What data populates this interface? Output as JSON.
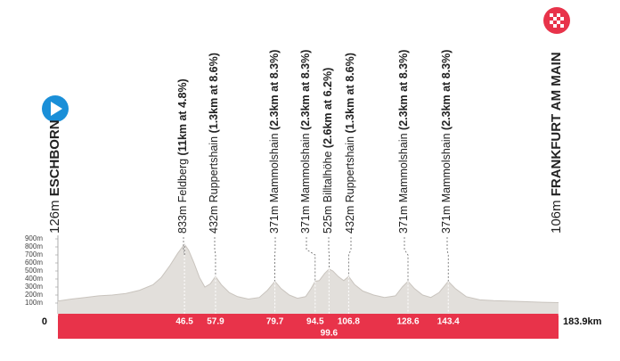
{
  "chart_data": {
    "type": "area",
    "start": {
      "elevation": "126m",
      "name": "ESCHBORN"
    },
    "finish": {
      "elevation": "106m",
      "name": "FRANKFURT AM MAIN"
    },
    "climbs": [
      {
        "km": 46.5,
        "label": "833m Feldberg",
        "detail": "(11km at 4.8%)"
      },
      {
        "km": 57.9,
        "label": "432m Ruppertshain",
        "detail": "(1.3km at 8.6%)"
      },
      {
        "km": 79.7,
        "label": "371m Mammolshain",
        "detail": "(2.3km at 8.3%)"
      },
      {
        "km": 94.5,
        "label": "371m Mammolshain",
        "detail": "(2.3km at 8.3%)"
      },
      {
        "km": 99.6,
        "label": "525m Billtalhöhe",
        "detail": "(2.6km at 6.2%)"
      },
      {
        "km": 106.8,
        "label": "432m Ruppertshain",
        "detail": "(1.3km at 8.6%)"
      },
      {
        "km": 128.6,
        "label": "371m Mammolshain",
        "detail": "(2.3km at 8.3%)"
      },
      {
        "km": 143.4,
        "label": "371m Mammolshain",
        "detail": "(2.3km at 8.3%)"
      }
    ],
    "x": [
      0,
      5,
      10,
      15,
      20,
      25,
      30,
      35,
      38,
      41,
      44,
      46.5,
      48,
      50,
      52,
      54,
      56,
      57.9,
      60,
      63,
      66,
      70,
      74,
      77,
      79.7,
      82,
      85,
      88,
      91,
      93,
      94.5,
      96,
      98,
      99.6,
      101,
      103,
      105,
      106.8,
      109,
      112,
      116,
      120,
      124,
      126.5,
      128.6,
      131,
      134,
      137,
      140,
      143.4,
      146,
      150,
      155,
      160,
      170,
      178,
      183.9
    ],
    "values": [
      126,
      150,
      170,
      190,
      200,
      220,
      260,
      330,
      420,
      560,
      720,
      833,
      760,
      600,
      420,
      300,
      340,
      432,
      330,
      230,
      180,
      150,
      170,
      260,
      371,
      280,
      200,
      160,
      180,
      280,
      371,
      380,
      470,
      525,
      500,
      430,
      380,
      432,
      330,
      250,
      200,
      170,
      190,
      300,
      371,
      280,
      200,
      170,
      230,
      371,
      280,
      180,
      140,
      130,
      120,
      110,
      106
    ],
    "color": "#e2dfdb",
    "bar_color": "#e8334a",
    "xlim": [
      0,
      183.9
    ],
    "xticks": [
      0,
      {
        "value": 183.9,
        "label": "183.9km"
      }
    ],
    "ylim": [
      0,
      900
    ],
    "yticks": [
      {
        "value": 100,
        "label": "100m"
      },
      {
        "value": 200,
        "label": "200m"
      },
      {
        "value": 300,
        "label": "300m"
      },
      {
        "value": 400,
        "label": "400m"
      },
      {
        "value": 500,
        "label": "500m"
      },
      {
        "value": 600,
        "label": "600m"
      },
      {
        "value": 700,
        "label": "700m"
      },
      {
        "value": 800,
        "label": "800m"
      },
      {
        "value": 900,
        "label": "900m"
      }
    ]
  }
}
